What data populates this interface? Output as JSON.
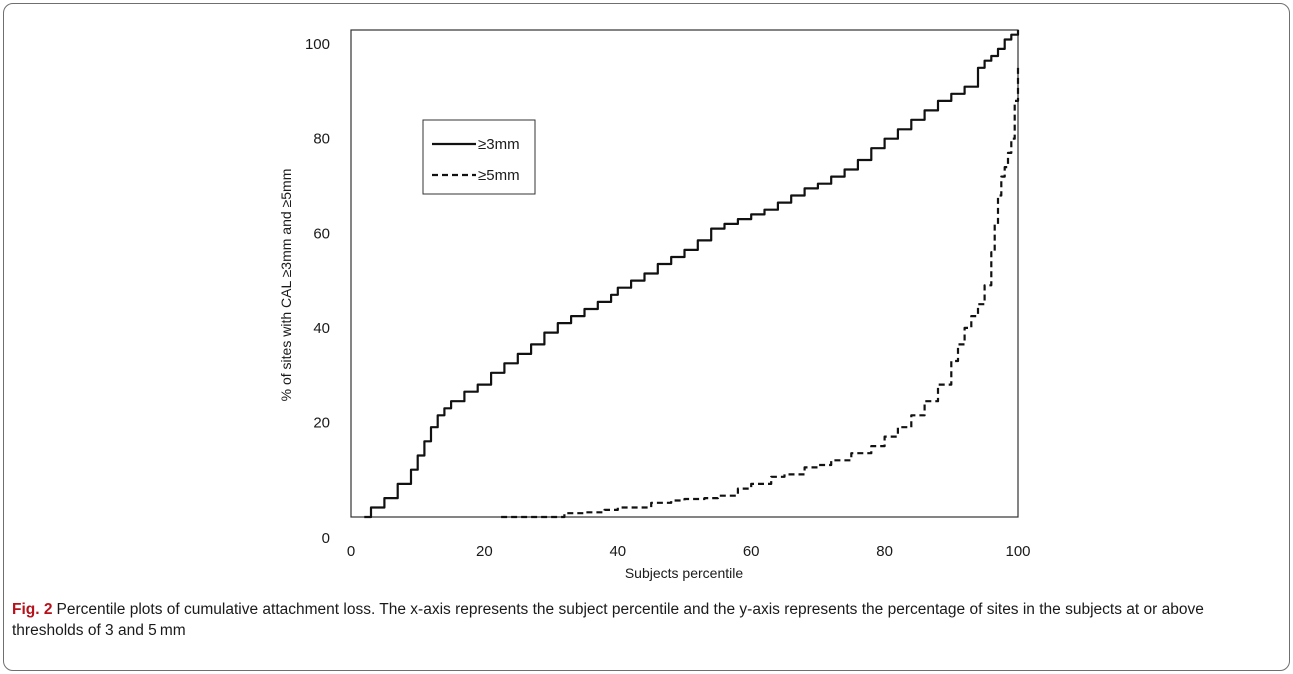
{
  "chart_data": {
    "type": "line",
    "xlabel": "Subjects percentile",
    "ylabel": "% of sites with CAL ≥3mm and ≥5mm",
    "xlim": [
      0,
      100
    ],
    "ylim": [
      0,
      103
    ],
    "xticks": [
      0,
      20,
      40,
      60,
      80,
      100
    ],
    "yticks": [
      0,
      20,
      40,
      60,
      80,
      100
    ],
    "grid": false,
    "legend_position": "upper-left inside plot",
    "series": [
      {
        "name": "≥3mm",
        "line_style": "solid",
        "color": "#111111",
        "x": [
          2.0,
          3,
          5,
          7,
          9,
          10,
          11,
          12,
          13,
          14,
          15,
          17,
          19,
          21,
          23,
          25,
          27,
          29,
          31,
          33,
          35,
          37,
          39,
          40,
          42,
          44,
          46,
          48,
          50,
          52,
          54,
          56,
          58,
          60,
          62,
          64,
          66,
          68,
          70,
          72,
          74,
          76,
          78,
          80,
          82,
          84,
          86,
          88,
          90,
          92,
          94,
          95,
          96,
          97,
          98,
          99,
          100
        ],
        "y": [
          0,
          2,
          4,
          7,
          10,
          13,
          16,
          19,
          21.5,
          23,
          24.5,
          26.5,
          28,
          30.5,
          32.5,
          34.5,
          36.5,
          39,
          41,
          42.5,
          44,
          45.5,
          47,
          48.5,
          50,
          51.5,
          53.5,
          55,
          56.5,
          58.5,
          61,
          62,
          63,
          64,
          65,
          66.5,
          68,
          69.5,
          70.5,
          72,
          73.5,
          75.5,
          78,
          80,
          82,
          84,
          86,
          88,
          89.5,
          91,
          95,
          96.5,
          97.5,
          99,
          101,
          102,
          103
        ]
      },
      {
        "name": "≥5mm",
        "line_style": "dashed",
        "color": "#111111",
        "x": [
          22.5,
          25,
          28,
          30,
          32,
          35,
          38,
          40,
          45,
          48,
          50,
          53,
          55,
          58,
          60,
          63,
          65,
          68,
          70,
          72,
          75,
          78,
          80,
          82,
          84,
          86,
          88,
          90,
          91,
          92,
          93,
          94,
          95,
          96,
          96.5,
          97,
          97.5,
          98,
          98.5,
          99,
          99.5,
          100
        ],
        "y": [
          0,
          0,
          0,
          0,
          0.8,
          1.0,
          1.5,
          2.0,
          3.0,
          3.5,
          3.8,
          4.0,
          4.5,
          6.0,
          7.0,
          8.5,
          9.0,
          10.5,
          11.0,
          12.0,
          13.5,
          15.0,
          17.0,
          19.0,
          21.5,
          24.5,
          28.0,
          33.0,
          36.5,
          40.0,
          42.5,
          45.0,
          49.0,
          56.0,
          62.0,
          68.0,
          72.0,
          74.0,
          77.0,
          80.0,
          88.0,
          95.0
        ]
      }
    ]
  },
  "caption": {
    "label": "Fig. 2",
    "text": "Percentile plots of cumulative attachment loss. The x-axis represents the subject percentile and the y-axis represents the percentage of sites in the subjects at or above thresholds of 3 and 5 mm"
  }
}
